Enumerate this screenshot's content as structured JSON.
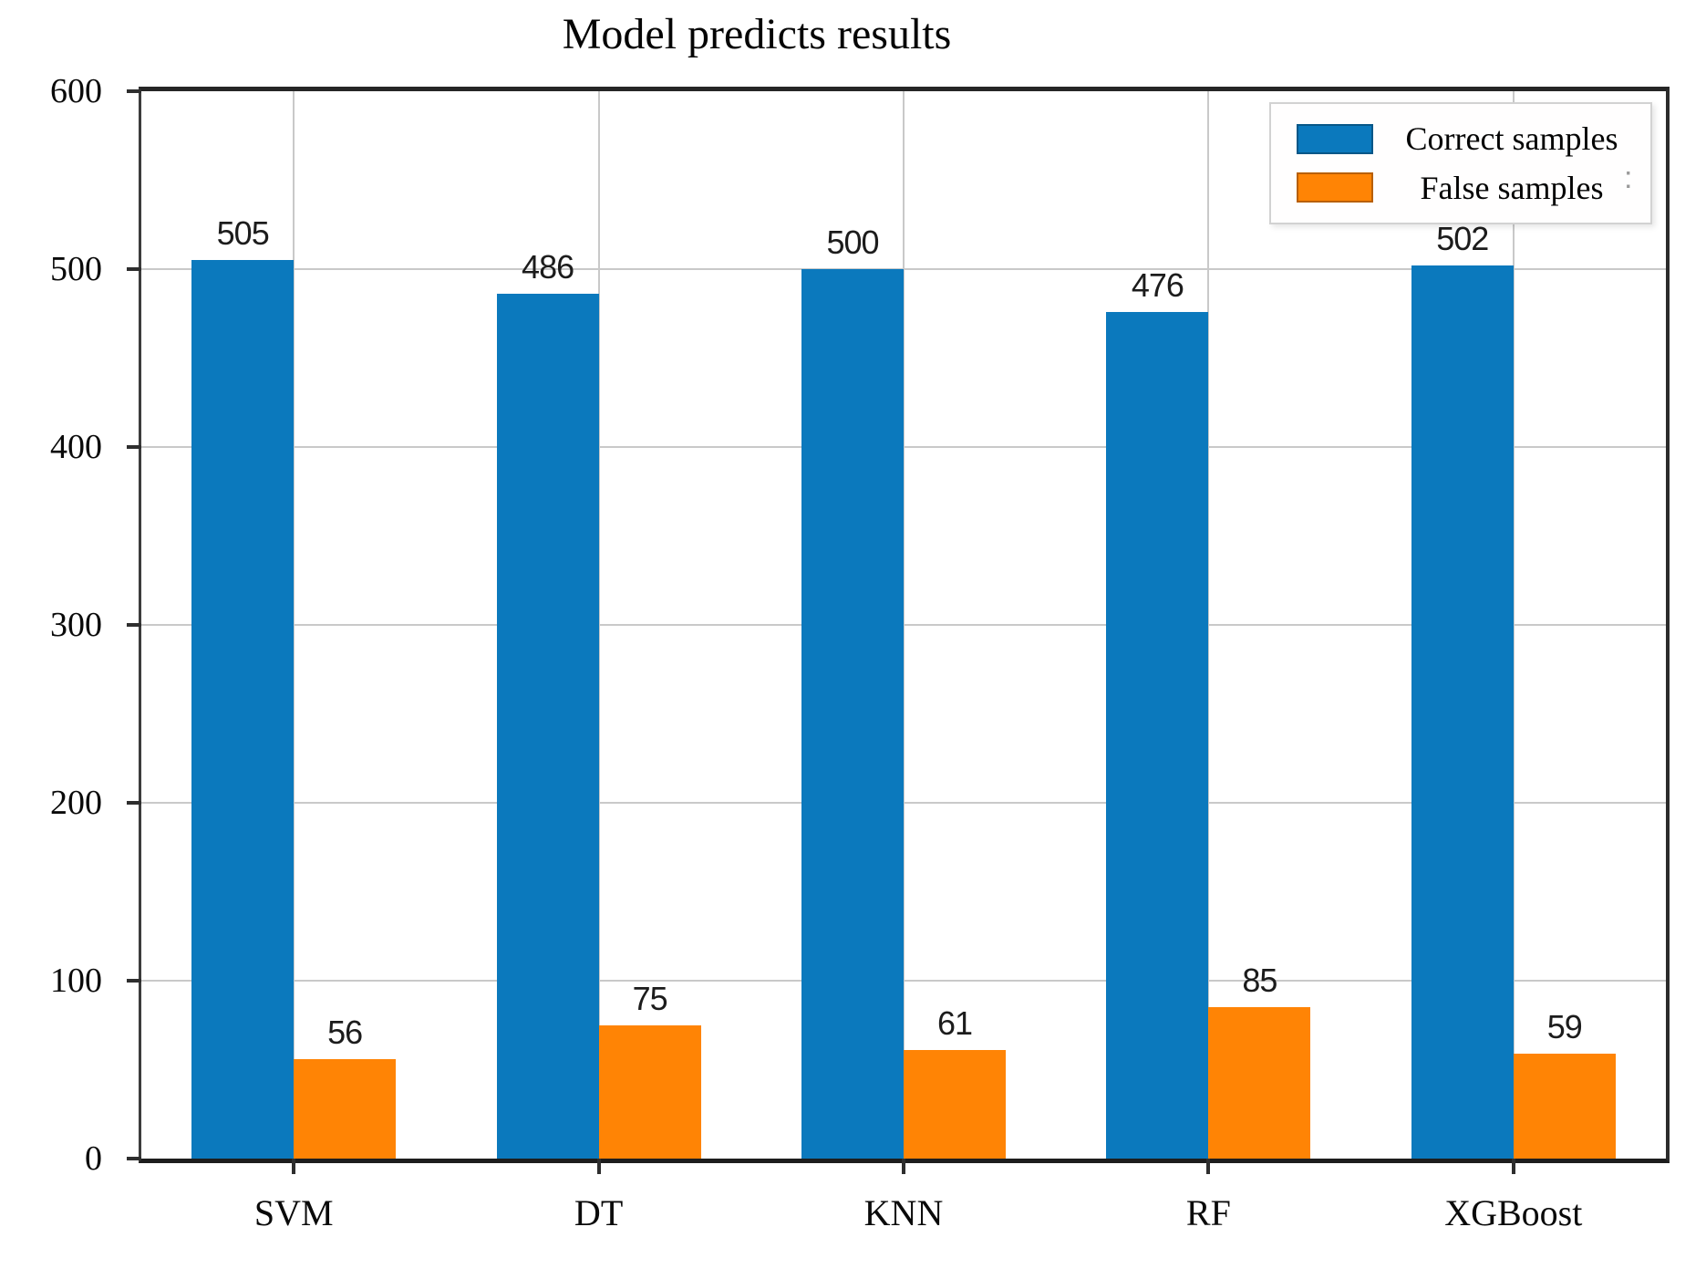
{
  "title": "Model predicts results",
  "legend": {
    "position": "upper right",
    "items": [
      {
        "label": "Correct samples",
        "color": "#0b79bd"
      },
      {
        "label": "False samples",
        "color": "#ff8405"
      }
    ]
  },
  "artifact_mark": ":",
  "chart_data": {
    "type": "bar",
    "title": "Model predicts results",
    "xlabel": "",
    "ylabel": "",
    "categories": [
      "SVM",
      "DT",
      "KNN",
      "RF",
      "XGBoost"
    ],
    "series": [
      {
        "name": "Correct samples",
        "color": "#0b79bd",
        "values": [
          505,
          486,
          500,
          476,
          502
        ]
      },
      {
        "name": "False samples",
        "color": "#ff8405",
        "values": [
          56,
          75,
          61,
          85,
          59
        ]
      }
    ],
    "ylim": [
      0,
      600
    ],
    "y_ticks": [
      0,
      100,
      200,
      300,
      400,
      500,
      600
    ],
    "grid": true,
    "legend_position": "upper right",
    "bar_value_labels": true,
    "colors": {
      "grid": "#c9c9c9",
      "spine": "#2b2b2b",
      "background": "#ffffff"
    }
  }
}
